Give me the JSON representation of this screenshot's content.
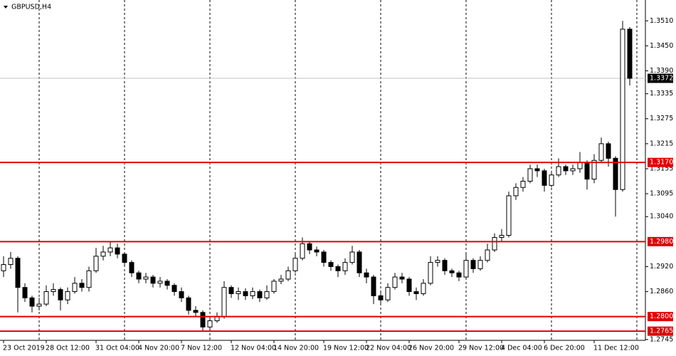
{
  "chart_data": {
    "type": "candlestick",
    "title": "GBPUSD,H4",
    "categories": [
      "23 Oct 2019",
      null,
      null,
      null,
      null,
      null,
      "28 Oct 12:00",
      null,
      null,
      null,
      null,
      null,
      null,
      "31 Oct 04:00",
      null,
      null,
      null,
      null,
      null,
      "4 Nov 20:00",
      null,
      null,
      null,
      null,
      null,
      "7 Nov 12:00",
      null,
      null,
      null,
      null,
      null,
      null,
      "12 Nov 04:00",
      null,
      null,
      null,
      null,
      null,
      "14 Nov 20:00",
      null,
      null,
      null,
      null,
      null,
      null,
      "19 Nov 12:00",
      null,
      null,
      null,
      null,
      null,
      "22 Nov 04:00",
      null,
      null,
      null,
      null,
      null,
      "26 Nov 20:00",
      null,
      null,
      null,
      null,
      null,
      null,
      "29 Nov 12:00",
      null,
      null,
      null,
      null,
      null,
      "4 Dec 04:00",
      null,
      null,
      null,
      null,
      null,
      "6 Dec 20:00",
      null,
      null,
      null,
      null,
      null,
      null,
      "11 Dec 12:00",
      null,
      null,
      null,
      null,
      null
    ],
    "open": [
      1.291,
      1.2925,
      1.294,
      1.287,
      1.2845,
      1.2825,
      1.283,
      1.286,
      1.2865,
      1.284,
      1.286,
      1.288,
      1.287,
      1.291,
      1.2945,
      1.2955,
      1.2965,
      1.295,
      1.293,
      1.2905,
      1.289,
      1.2895,
      1.288,
      1.2885,
      1.2875,
      1.286,
      1.2845,
      1.2815,
      1.281,
      1.2775,
      1.279,
      1.28,
      1.287,
      1.2855,
      1.286,
      1.285,
      1.286,
      1.2845,
      1.286,
      1.2885,
      1.289,
      1.291,
      1.294,
      1.2975,
      1.296,
      1.2955,
      1.293,
      1.292,
      1.291,
      1.293,
      1.2955,
      1.2905,
      1.2895,
      1.285,
      1.284,
      1.287,
      1.2895,
      1.289,
      1.286,
      1.2855,
      1.288,
      1.293,
      1.2935,
      1.291,
      1.2905,
      1.2895,
      1.2935,
      1.2915,
      1.2935,
      1.296,
      1.299,
      1.2995,
      1.309,
      1.311,
      1.3125,
      1.3155,
      1.315,
      1.3115,
      1.314,
      1.316,
      1.315,
      1.3155,
      1.317,
      1.313,
      1.3175,
      1.3215,
      1.318,
      1.3105,
      1.349
    ],
    "high": [
      1.2945,
      1.2955,
      1.2945,
      1.288,
      1.285,
      1.2845,
      1.2875,
      1.288,
      1.287,
      1.287,
      1.2895,
      1.289,
      1.292,
      1.2965,
      1.297,
      1.298,
      1.2975,
      1.2955,
      1.2935,
      1.291,
      1.2905,
      1.29,
      1.2895,
      1.289,
      1.288,
      1.287,
      1.285,
      1.2825,
      1.2815,
      1.28,
      1.281,
      1.2885,
      1.2875,
      1.287,
      1.2868,
      1.287,
      1.2865,
      1.2875,
      1.289,
      1.29,
      1.292,
      1.295,
      1.299,
      1.298,
      1.2968,
      1.296,
      1.2935,
      1.2925,
      1.294,
      1.297,
      1.296,
      1.2915,
      1.29,
      1.286,
      1.288,
      1.2905,
      1.2905,
      1.2895,
      1.287,
      1.289,
      1.2945,
      1.2945,
      1.294,
      1.2915,
      1.291,
      1.295,
      1.294,
      1.2945,
      1.2975,
      1.3,
      1.301,
      1.31,
      1.312,
      1.3135,
      1.3165,
      1.3165,
      1.3155,
      1.315,
      1.318,
      1.3165,
      1.3165,
      1.3195,
      1.3175,
      1.319,
      1.323,
      1.322,
      1.3185,
      1.351,
      1.3495
    ],
    "low": [
      1.2895,
      1.2915,
      1.281,
      1.2835,
      1.281,
      1.2815,
      1.2825,
      1.285,
      1.2815,
      1.283,
      1.2855,
      1.286,
      1.286,
      1.2905,
      1.2935,
      1.2945,
      1.294,
      1.292,
      1.2895,
      1.288,
      1.288,
      1.287,
      1.287,
      1.2865,
      1.285,
      1.2835,
      1.2805,
      1.28,
      1.2765,
      1.2768,
      1.2785,
      1.2795,
      1.2845,
      1.284,
      1.284,
      1.2842,
      1.2835,
      1.284,
      1.2855,
      1.2878,
      1.2885,
      1.2905,
      1.2935,
      1.295,
      1.2945,
      1.292,
      1.291,
      1.2895,
      1.29,
      1.2925,
      1.2895,
      1.288,
      1.283,
      1.283,
      1.2835,
      1.2865,
      1.288,
      1.285,
      1.284,
      1.285,
      1.2875,
      1.292,
      1.29,
      1.2895,
      1.2885,
      1.289,
      1.2905,
      1.291,
      1.293,
      1.2955,
      1.298,
      1.299,
      1.308,
      1.31,
      1.312,
      1.3135,
      1.31,
      1.311,
      1.3135,
      1.314,
      1.314,
      1.3145,
      1.3105,
      1.312,
      1.317,
      1.316,
      1.304,
      1.31,
      1.3355
    ],
    "close": [
      1.2925,
      1.294,
      1.287,
      1.2845,
      1.2825,
      1.283,
      1.286,
      1.2865,
      1.284,
      1.286,
      1.288,
      1.287,
      1.291,
      1.2945,
      1.2955,
      1.2965,
      1.295,
      1.293,
      1.2905,
      1.289,
      1.2895,
      1.288,
      1.2885,
      1.2875,
      1.286,
      1.2845,
      1.2815,
      1.281,
      1.2775,
      1.279,
      1.28,
      1.287,
      1.2855,
      1.286,
      1.285,
      1.286,
      1.2845,
      1.286,
      1.2885,
      1.289,
      1.291,
      1.294,
      1.2975,
      1.296,
      1.2955,
      1.293,
      1.292,
      1.291,
      1.293,
      1.2955,
      1.2905,
      1.2895,
      1.285,
      1.284,
      1.287,
      1.2895,
      1.289,
      1.286,
      1.2855,
      1.288,
      1.293,
      1.2935,
      1.291,
      1.2905,
      1.2895,
      1.2935,
      1.2915,
      1.2935,
      1.296,
      1.299,
      1.2995,
      1.309,
      1.311,
      1.3125,
      1.3155,
      1.315,
      1.3115,
      1.314,
      1.316,
      1.315,
      1.3155,
      1.317,
      1.313,
      1.3175,
      1.3215,
      1.318,
      1.3105,
      1.349,
      1.3372
    ],
    "ylim": [
      1.2743,
      1.356
    ],
    "yticks": [
      {
        "value": 1.351,
        "label": "1.3510"
      },
      {
        "value": 1.345,
        "label": "1.3450"
      },
      {
        "value": 1.339,
        "label": "1.3390"
      },
      {
        "value": 1.3335,
        "label": "1.3335"
      },
      {
        "value": 1.3275,
        "label": "1.3275"
      },
      {
        "value": 1.3215,
        "label": "1.3215"
      },
      {
        "value": 1.3155,
        "label": "1.3155"
      },
      {
        "value": 1.3095,
        "label": "1.3095"
      },
      {
        "value": 1.304,
        "label": "1.3040"
      },
      {
        "value": 1.292,
        "label": "1.2920"
      },
      {
        "value": 1.286,
        "label": "1.2860"
      },
      {
        "value": 1.2745,
        "label": "1.2745"
      }
    ],
    "levels": [
      {
        "value": 1.317,
        "label": "1.3170"
      },
      {
        "value": 1.298,
        "label": "1.2980"
      },
      {
        "value": 1.28,
        "label": "1.2800"
      },
      {
        "value": 1.2765,
        "label": "1.2765"
      }
    ],
    "level_color": "#e00000",
    "last_price": {
      "value": 1.3372,
      "label": "1.3372"
    },
    "grid": true
  }
}
